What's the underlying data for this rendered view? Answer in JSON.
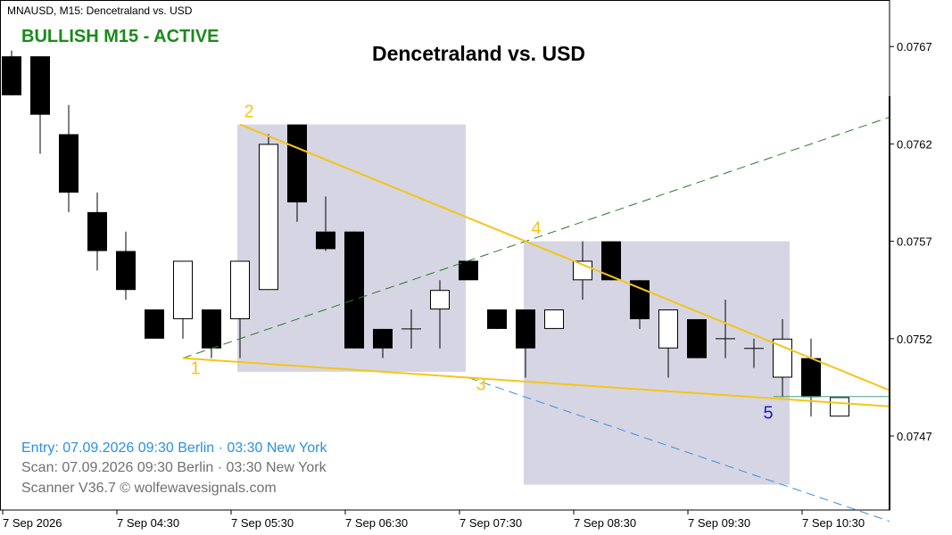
{
  "window": {
    "title": "MNAUSD, M15:  Dencetraland vs. USD"
  },
  "signal": {
    "label": "BULLISH M15 - ACTIVE",
    "color": "#1a8a1a"
  },
  "title": "Dencetraland vs. USD",
  "info": {
    "entry": "Entry: 07.09.2026  09:30 Berlin · 03:30 New York",
    "scan": "Scan:  07.09.2026  09:30 Berlin · 03:30 New York",
    "credit": "Scanner V36.7  © wolfewavesignals.com"
  },
  "chart_data": {
    "type": "candlestick",
    "y_ticks": [
      "0.0767",
      "0.0762",
      "0.0757",
      "0.0752",
      "0.0747"
    ],
    "ylim": [
      0.07432,
      0.07693
    ],
    "x_ticks": [
      "7 Sep 2026",
      "7 Sep 04:30",
      "7 Sep 05:30",
      "7 Sep 06:30",
      "7 Sep 07:30",
      "7 Sep 08:30",
      "7 Sep 09:30",
      "7 Sep 10:30"
    ],
    "candles": [
      {
        "o": 0.07665,
        "h": 0.07668,
        "l": 0.07645,
        "c": 0.07645
      },
      {
        "o": 0.07665,
        "h": 0.07665,
        "l": 0.07615,
        "c": 0.07635
      },
      {
        "o": 0.07625,
        "h": 0.0764,
        "l": 0.07585,
        "c": 0.07595
      },
      {
        "o": 0.07585,
        "h": 0.07595,
        "l": 0.07555,
        "c": 0.07565
      },
      {
        "o": 0.07565,
        "h": 0.07575,
        "l": 0.0754,
        "c": 0.07545
      },
      {
        "o": 0.07535,
        "h": 0.07535,
        "l": 0.0752,
        "c": 0.0752
      },
      {
        "o": 0.0753,
        "h": 0.0756,
        "l": 0.0752,
        "c": 0.0756
      },
      {
        "o": 0.07535,
        "h": 0.07535,
        "l": 0.0751,
        "c": 0.07515
      },
      {
        "o": 0.0753,
        "h": 0.0756,
        "l": 0.0751,
        "c": 0.0756
      },
      {
        "o": 0.07545,
        "h": 0.07625,
        "l": 0.07545,
        "c": 0.0762
      },
      {
        "o": 0.0763,
        "h": 0.0763,
        "l": 0.0758,
        "c": 0.0759
      },
      {
        "o": 0.07575,
        "h": 0.07593,
        "l": 0.07565,
        "c": 0.07566
      },
      {
        "o": 0.07575,
        "h": 0.07575,
        "l": 0.07515,
        "c": 0.07515
      },
      {
        "o": 0.07525,
        "h": 0.07525,
        "l": 0.0751,
        "c": 0.07515
      },
      {
        "o": 0.07525,
        "h": 0.07535,
        "l": 0.07515,
        "c": 0.07525
      },
      {
        "o": 0.07535,
        "h": 0.0755,
        "l": 0.07515,
        "c": 0.07545
      },
      {
        "o": 0.0756,
        "h": 0.0756,
        "l": 0.0755,
        "c": 0.0755
      },
      {
        "o": 0.07535,
        "h": 0.07535,
        "l": 0.07525,
        "c": 0.07525
      },
      {
        "o": 0.07535,
        "h": 0.07535,
        "l": 0.075,
        "c": 0.07515
      },
      {
        "o": 0.07525,
        "h": 0.07535,
        "l": 0.07525,
        "c": 0.07535
      },
      {
        "o": 0.0755,
        "h": 0.0757,
        "l": 0.0754,
        "c": 0.0756
      },
      {
        "o": 0.0757,
        "h": 0.0757,
        "l": 0.0755,
        "c": 0.0755
      },
      {
        "o": 0.0755,
        "h": 0.0755,
        "l": 0.07525,
        "c": 0.0753
      },
      {
        "o": 0.07515,
        "h": 0.07535,
        "l": 0.075,
        "c": 0.07535
      },
      {
        "o": 0.0753,
        "h": 0.0753,
        "l": 0.0751,
        "c": 0.0751
      },
      {
        "o": 0.0752,
        "h": 0.0754,
        "l": 0.0751,
        "c": 0.0752
      },
      {
        "o": 0.07515,
        "h": 0.0752,
        "l": 0.07505,
        "c": 0.07515
      },
      {
        "o": 0.075,
        "h": 0.0753,
        "l": 0.0749,
        "c": 0.0752
      },
      {
        "o": 0.0751,
        "h": 0.0752,
        "l": 0.0748,
        "c": 0.0749
      },
      {
        "o": 0.0748,
        "h": 0.0749,
        "l": 0.0748,
        "c": 0.0749
      }
    ],
    "wave_points": [
      {
        "label": "1",
        "candle": 6,
        "price": 0.0751
      },
      {
        "label": "2",
        "candle": 8,
        "price": 0.0763
      },
      {
        "label": "3",
        "candle": 16,
        "price": 0.075
      },
      {
        "label": "4",
        "candle": 18,
        "price": 0.0757
      },
      {
        "label": "5",
        "candle": 27,
        "price": 0.07488
      }
    ],
    "colors": {
      "wave": "#f5c518",
      "target_line": "#2a7a2a",
      "stop_line": "#3a90e0",
      "box": "#d5d5e3",
      "point5": "#1a1acc"
    }
  }
}
